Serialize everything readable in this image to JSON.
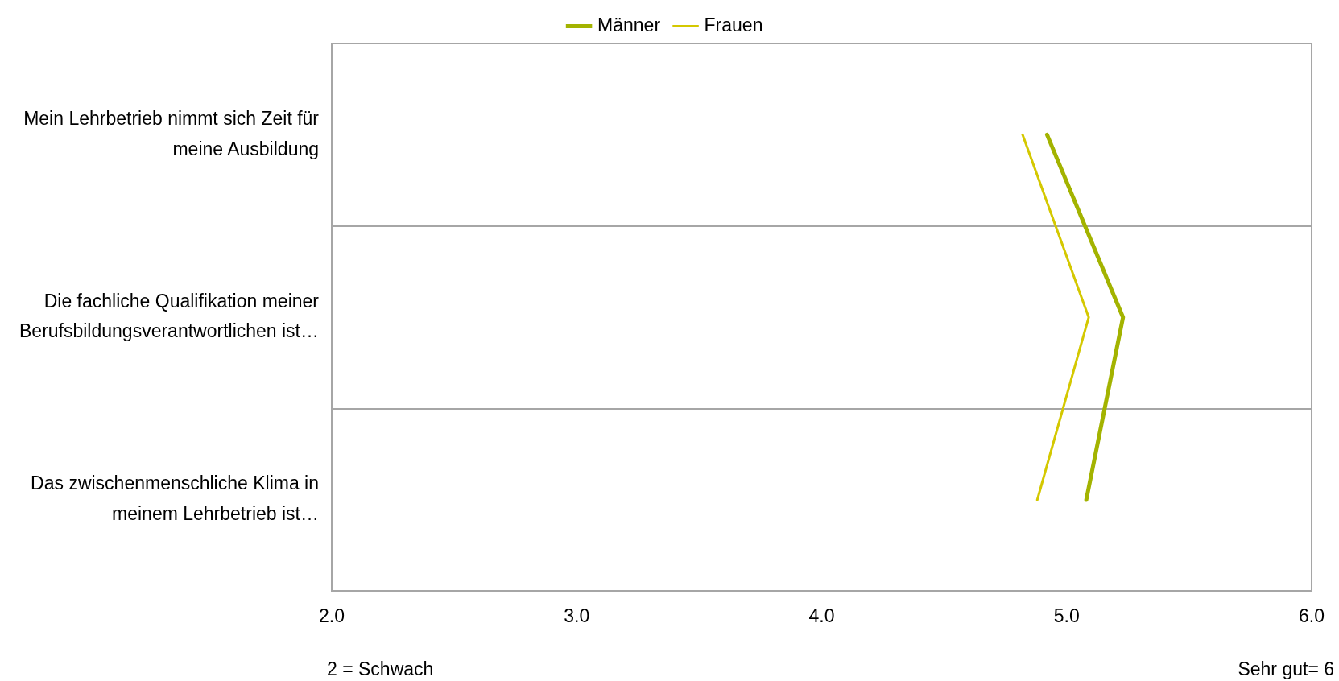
{
  "chart_data": {
    "type": "line",
    "orientation": "horizontal",
    "categories": [
      "Mein Lehrbetrieb nimmt sich Zeit für meine Ausbildung",
      "Die fachliche Qualifikation meiner Berufsbildungsverantwortlichen ist…",
      "Das zwischenmenschliche Klima in meinem Lehrbetrieb ist…"
    ],
    "series": [
      {
        "name": "Männer",
        "color": "#a3b300",
        "values": [
          4.92,
          5.23,
          5.08
        ]
      },
      {
        "name": "Frauen",
        "color": "#d4c800",
        "values": [
          4.82,
          5.09,
          4.88
        ]
      }
    ],
    "xlim": [
      2,
      6
    ],
    "xticks": [
      {
        "value": 2,
        "label": "2.0"
      },
      {
        "value": 3,
        "label": "3.0"
      },
      {
        "value": 4,
        "label": "4.0"
      },
      {
        "value": 5,
        "label": "5.0"
      },
      {
        "value": 6,
        "label": "6.0"
      }
    ],
    "grid": "y",
    "legend": "top",
    "marker": "none",
    "line_style": "solid",
    "annotations": [
      "2 = Schwach",
      "Sehr gut= 6"
    ]
  }
}
